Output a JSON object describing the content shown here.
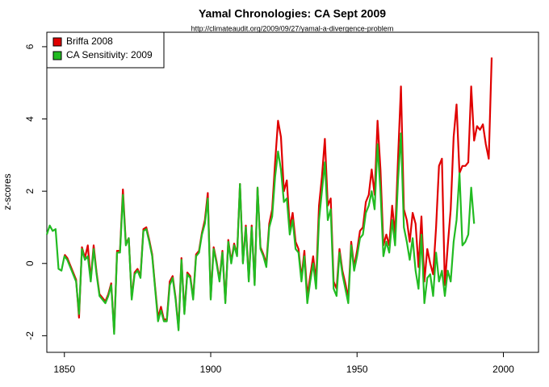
{
  "chart_data": {
    "type": "line",
    "title": "Yamal Chronologies:  CA Sept 2009",
    "subtitle": "http://climateaudit.org/2009/09/27/yamal-a-divergence-problem",
    "y_label": "z-scores",
    "legend": "top-left",
    "x": [
      1844,
      1845,
      1846,
      1847,
      1848,
      1849,
      1850,
      1851,
      1852,
      1853,
      1854,
      1855,
      1856,
      1857,
      1858,
      1859,
      1860,
      1861,
      1862,
      1863,
      1864,
      1865,
      1866,
      1867,
      1868,
      1869,
      1870,
      1871,
      1872,
      1873,
      1874,
      1875,
      1876,
      1877,
      1878,
      1879,
      1880,
      1881,
      1882,
      1883,
      1884,
      1885,
      1886,
      1887,
      1888,
      1889,
      1890,
      1891,
      1892,
      1893,
      1894,
      1895,
      1896,
      1897,
      1898,
      1899,
      1900,
      1901,
      1902,
      1903,
      1904,
      1905,
      1906,
      1907,
      1908,
      1909,
      1910,
      1911,
      1912,
      1913,
      1914,
      1915,
      1916,
      1917,
      1918,
      1919,
      1920,
      1921,
      1922,
      1923,
      1924,
      1925,
      1926,
      1927,
      1928,
      1929,
      1930,
      1931,
      1932,
      1933,
      1934,
      1935,
      1936,
      1937,
      1938,
      1939,
      1940,
      1941,
      1942,
      1943,
      1944,
      1945,
      1946,
      1947,
      1948,
      1949,
      1950,
      1951,
      1952,
      1953,
      1954,
      1955,
      1956,
      1957,
      1958,
      1959,
      1960,
      1961,
      1962,
      1963,
      1964,
      1965,
      1966,
      1967,
      1968,
      1969,
      1970,
      1971,
      1972,
      1973,
      1974,
      1975,
      1976,
      1977,
      1978,
      1979,
      1980,
      1981,
      1982,
      1983,
      1984,
      1985,
      1986,
      1987,
      1988,
      1989,
      1990,
      1991,
      1992,
      1993,
      1994,
      1995,
      1996
    ],
    "series": [
      {
        "name": "Briffa 2008",
        "color": "#e00000",
        "values": [
          null,
          null,
          null,
          null,
          null,
          null,
          0.25,
          0.15,
          -0.05,
          -0.25,
          -0.45,
          -1.5,
          0.45,
          0.15,
          0.5,
          -0.45,
          0.5,
          -0.25,
          -0.85,
          -0.95,
          -1.05,
          -0.85,
          -0.55,
          -1.9,
          0.35,
          0.35,
          2.05,
          0.55,
          0.7,
          -0.95,
          -0.25,
          -0.15,
          -0.35,
          0.95,
          1.0,
          0.65,
          0.25,
          -0.65,
          -1.5,
          -1.2,
          -1.55,
          -1.55,
          -0.5,
          -0.35,
          -0.95,
          -1.8,
          0.15,
          -1.35,
          -0.25,
          -0.35,
          -0.95,
          0.25,
          0.35,
          0.85,
          1.2,
          1.95,
          -0.95,
          0.45,
          0.05,
          -0.45,
          0.35,
          -1.05,
          0.65,
          0.05,
          0.55,
          0.25,
          2.2,
          0.05,
          1.05,
          -0.45,
          1.05,
          -0.55,
          2.1,
          0.45,
          0.25,
          0.0,
          1.1,
          1.5,
          2.8,
          3.95,
          3.5,
          2.0,
          2.3,
          1.0,
          1.4,
          0.6,
          0.4,
          -0.4,
          0.35,
          -0.9,
          -0.35,
          0.2,
          -0.5,
          1.6,
          2.4,
          3.45,
          1.6,
          1.8,
          -0.5,
          -0.7,
          0.4,
          -0.2,
          -0.55,
          -0.95,
          0.6,
          -0.1,
          0.35,
          0.9,
          1.0,
          1.7,
          1.9,
          2.6,
          1.9,
          3.95,
          2.6,
          0.5,
          0.8,
          0.5,
          1.6,
          0.8,
          2.9,
          4.9,
          1.5,
          1.2,
          0.6,
          1.4,
          1.1,
          -0.1,
          1.3,
          -0.5,
          0.4,
          0.0,
          -0.3,
          1.0,
          2.7,
          2.9,
          -0.6,
          0.5,
          1.5,
          3.5,
          4.4,
          2.5,
          2.7,
          2.7,
          2.8,
          4.9,
          3.4,
          3.8,
          3.7,
          3.85,
          3.3,
          2.9,
          5.7
        ]
      },
      {
        "name": "CA Sensitivity: 2009",
        "color": "#22bb22",
        "values": [
          0.8,
          1.05,
          0.9,
          0.95,
          -0.15,
          -0.2,
          0.2,
          0.1,
          -0.1,
          -0.3,
          -0.5,
          -1.4,
          0.4,
          0.1,
          0.2,
          -0.5,
          0.4,
          -0.3,
          -0.9,
          -1.0,
          -1.1,
          -0.9,
          -0.6,
          -1.95,
          0.3,
          0.3,
          1.9,
          0.5,
          0.7,
          -1.0,
          -0.3,
          -0.2,
          -0.4,
          0.9,
          0.95,
          0.6,
          0.2,
          -0.7,
          -1.6,
          -1.3,
          -1.6,
          -1.6,
          -0.6,
          -0.4,
          -1.0,
          -1.85,
          0.1,
          -1.4,
          -0.3,
          -0.4,
          -1.0,
          0.2,
          0.3,
          0.8,
          1.1,
          1.8,
          -1.0,
          0.4,
          0.0,
          -0.5,
          0.3,
          -1.1,
          0.6,
          0.0,
          0.5,
          0.2,
          2.2,
          0.0,
          1.0,
          -0.5,
          1.0,
          -0.6,
          2.1,
          0.4,
          0.2,
          -0.1,
          1.0,
          1.3,
          2.4,
          3.1,
          2.6,
          1.7,
          1.8,
          0.8,
          1.2,
          0.4,
          0.3,
          -0.5,
          0.2,
          -1.1,
          -0.5,
          0.0,
          -0.7,
          1.2,
          2.0,
          2.8,
          1.2,
          1.5,
          -0.7,
          -0.9,
          0.3,
          -0.3,
          -0.7,
          -1.1,
          0.5,
          -0.2,
          0.2,
          0.7,
          0.8,
          1.4,
          1.6,
          2.0,
          1.5,
          3.3,
          2.0,
          0.2,
          0.6,
          0.3,
          1.2,
          0.5,
          2.3,
          3.6,
          1.0,
          0.6,
          0.1,
          0.7,
          -0.2,
          -0.7,
          0.8,
          -1.1,
          -0.4,
          -0.3,
          -0.9,
          0.3,
          -0.5,
          -0.2,
          -0.9,
          -0.2,
          -0.5,
          0.6,
          1.2,
          2.5,
          0.5,
          0.6,
          0.8,
          2.1,
          1.1,
          null,
          null,
          null,
          null,
          null,
          null
        ]
      }
    ],
    "xlim": [
      1844,
      2012
    ],
    "xticks": [
      1850,
      1900,
      1950,
      2000
    ],
    "ylim": [
      -2.46,
      6.4
    ],
    "yticks": [
      -2,
      0,
      2,
      4,
      6
    ]
  }
}
